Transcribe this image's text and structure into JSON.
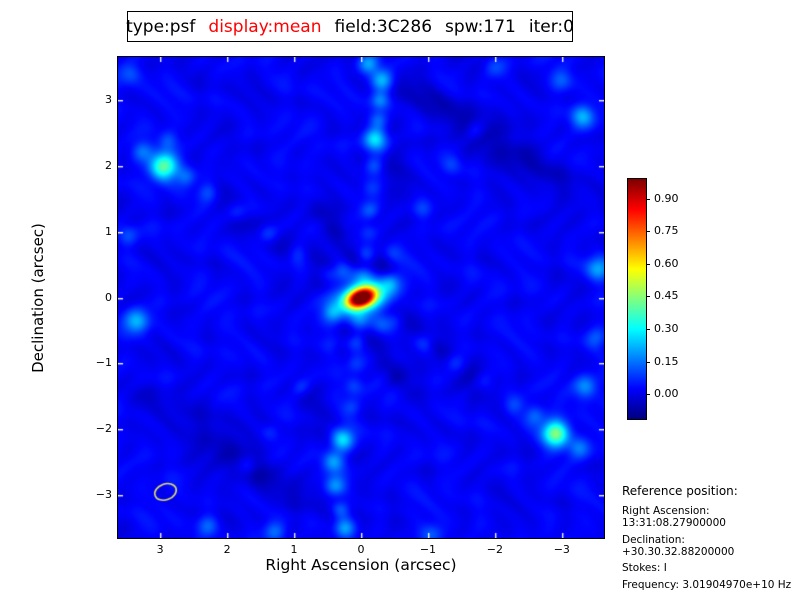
{
  "title": {
    "segments": [
      {
        "text": "type:psf",
        "color": "#000000"
      },
      {
        "text": "display:mean",
        "color": "#ff0000"
      },
      {
        "text": "field:3C286",
        "color": "#000000"
      },
      {
        "text": "spw:171",
        "color": "#000000"
      },
      {
        "text": "iter:0",
        "color": "#000000"
      }
    ]
  },
  "chart_data": {
    "type": "heatmap",
    "title": "type:psf display:mean field:3C286 spw:171 iter:0",
    "xlabel": "Right Ascension (arcsec)",
    "ylabel": "Declination (arcsec)",
    "xticks": [
      3,
      2,
      1,
      0,
      -1,
      -2,
      -3
    ],
    "yticks": [
      3,
      2,
      1,
      0,
      -1,
      -2,
      -3
    ],
    "xlim": [
      3.63,
      -3.63
    ],
    "ylim": [
      -3.65,
      3.65
    ],
    "colormap": "jet",
    "base_level": 0.02,
    "colorbar": {
      "ticks": [
        "0.90",
        "0.75",
        "0.60",
        "0.45",
        "0.30",
        "0.15",
        "0.00"
      ],
      "tick_values": [
        0.9,
        0.75,
        0.6,
        0.45,
        0.3,
        0.15,
        0.0
      ],
      "vmin": -0.11,
      "vmax": 0.995
    },
    "peak": {
      "x": 0,
      "y": 0,
      "value": 1.0
    },
    "features_format": "[ra_arcsec, dec_arcsec, amplitude, sigma_major_arcsec, sigma_minor_arcsec(optional), rotation_deg_screen(optional)]",
    "features": [
      [
        0,
        0,
        1.05,
        0.17,
        0.105,
        -20
      ],
      [
        0,
        0,
        0.17,
        0.4,
        0.28,
        -20
      ],
      [
        0.52,
        0.28,
        -0.1,
        0.16
      ],
      [
        -0.52,
        -0.28,
        -0.1,
        0.16
      ],
      [
        0.28,
        -0.5,
        -0.09,
        0.15
      ],
      [
        -0.28,
        0.5,
        -0.09,
        0.15
      ],
      [
        0.05,
        0.62,
        -0.07,
        0.14
      ],
      [
        -0.05,
        -0.62,
        -0.07,
        0.14
      ],
      [
        0.42,
        -0.22,
        0.13,
        0.1
      ],
      [
        -0.42,
        0.22,
        0.13,
        0.1
      ],
      [
        0.3,
        0.4,
        0.1,
        0.1
      ],
      [
        -0.3,
        -0.4,
        0.1,
        0.1
      ],
      [
        0.5,
        0.35,
        0.1,
        0.11
      ],
      [
        0.95,
        0.67,
        0.08,
        0.11
      ],
      [
        1.4,
        0.98,
        0.11,
        0.11
      ],
      [
        1.85,
        1.3,
        0.08,
        0.11
      ],
      [
        2.3,
        1.61,
        0.1,
        0.11
      ],
      [
        2.62,
        1.83,
        0.13,
        0.11
      ],
      [
        2.95,
        2.0,
        0.4,
        0.14
      ],
      [
        3.28,
        2.22,
        0.12,
        0.11
      ],
      [
        2.9,
        2.4,
        0.1,
        0.1
      ],
      [
        -0.5,
        -0.35,
        0.1,
        0.11
      ],
      [
        -0.95,
        -0.67,
        0.09,
        0.11
      ],
      [
        -1.4,
        -0.98,
        0.11,
        0.11
      ],
      [
        -1.85,
        -1.3,
        0.08,
        0.11
      ],
      [
        -2.3,
        -1.61,
        0.11,
        0.11
      ],
      [
        -2.58,
        -1.8,
        0.14,
        0.11
      ],
      [
        -2.9,
        -2.05,
        0.42,
        0.14
      ],
      [
        -3.25,
        -2.28,
        0.13,
        0.11
      ],
      [
        -0.03,
        0.33,
        0.08,
        0.095
      ],
      [
        -0.06,
        0.66,
        0.1,
        0.095
      ],
      [
        -0.09,
        1.0,
        0.07,
        0.095
      ],
      [
        -0.12,
        1.33,
        0.09,
        0.095
      ],
      [
        -0.15,
        1.66,
        0.07,
        0.095
      ],
      [
        -0.18,
        2.0,
        0.1,
        0.095
      ],
      [
        -0.21,
        2.4,
        0.28,
        0.12
      ],
      [
        -0.24,
        2.7,
        0.12,
        0.095
      ],
      [
        -0.27,
        3.0,
        0.14,
        0.095
      ],
      [
        -0.3,
        3.3,
        0.22,
        0.12
      ],
      [
        -0.1,
        3.55,
        0.18,
        0.11
      ],
      [
        0.03,
        -0.33,
        0.08,
        0.095
      ],
      [
        0.06,
        -0.66,
        0.1,
        0.095
      ],
      [
        0.09,
        -1.0,
        0.07,
        0.095
      ],
      [
        0.12,
        -1.33,
        0.09,
        0.095
      ],
      [
        0.15,
        -1.66,
        0.08,
        0.095
      ],
      [
        0.28,
        -2.15,
        0.26,
        0.12
      ],
      [
        0.42,
        -2.48,
        0.2,
        0.11
      ],
      [
        0.4,
        -2.86,
        0.18,
        0.11
      ],
      [
        0.3,
        -3.2,
        0.12,
        0.095
      ],
      [
        0.25,
        -3.5,
        0.2,
        0.11
      ],
      [
        0.45,
        -0.68,
        0.06,
        0.1
      ],
      [
        0.9,
        -1.35,
        0.07,
        0.1
      ],
      [
        1.35,
        -2.03,
        0.06,
        0.1
      ],
      [
        1.7,
        -2.55,
        0.07,
        0.1
      ],
      [
        -0.45,
        0.68,
        0.06,
        0.1
      ],
      [
        -0.9,
        1.35,
        0.07,
        0.1
      ],
      [
        -1.35,
        2.03,
        0.06,
        0.1
      ],
      [
        -1.7,
        2.55,
        0.07,
        0.1
      ],
      [
        3.35,
        -0.35,
        0.22,
        0.13
      ],
      [
        3.5,
        0.95,
        0.1,
        0.11
      ],
      [
        3.45,
        3.4,
        0.1,
        0.11
      ],
      [
        -3.3,
        2.75,
        0.18,
        0.12
      ],
      [
        -3.55,
        0.45,
        0.2,
        0.13
      ],
      [
        -3.5,
        -0.6,
        0.12,
        0.11
      ],
      [
        -3.35,
        -1.35,
        0.18,
        0.12
      ],
      [
        -3.0,
        3.3,
        0.1,
        0.11
      ],
      [
        1.3,
        -3.55,
        0.12,
        0.11
      ],
      [
        -1.05,
        -3.6,
        0.1,
        0.11
      ],
      [
        2.3,
        -3.45,
        0.1,
        0.11
      ],
      [
        -2.0,
        3.5,
        0.08,
        0.11
      ],
      [
        1.5,
        1.05,
        -0.05,
        0.7,
        0.16,
        34
      ],
      [
        -1.5,
        -1.05,
        -0.05,
        0.7,
        0.16,
        34
      ],
      [
        -1.2,
        2.9,
        -0.06,
        0.8,
        0.16,
        30
      ],
      [
        -2.4,
        2.1,
        -0.05,
        0.9,
        0.2,
        28
      ],
      [
        1.3,
        -2.8,
        -0.05,
        0.8,
        0.18,
        30
      ],
      [
        2.4,
        -2.0,
        -0.04,
        0.9,
        0.2,
        28
      ],
      [
        0.5,
        1.15,
        -0.07,
        0.3,
        0.12,
        55
      ],
      [
        -0.5,
        -1.15,
        -0.07,
        0.3,
        0.12,
        55
      ],
      [
        -0.6,
        1.9,
        -0.05,
        0.35,
        0.14,
        60
      ],
      [
        0.6,
        -1.9,
        -0.05,
        0.35,
        0.14,
        60
      ]
    ],
    "beam_ellipse": {
      "x": 2.92,
      "y": -2.95,
      "rx": 0.165,
      "ry": 0.121,
      "angle_deg": -20,
      "color": "#dede6a"
    }
  },
  "reference": {
    "heading": "Reference position:",
    "lines": [
      "Right Ascension: 13:31:08.27900000",
      "Declination: +30.30.32.88200000",
      "Stokes: I",
      "Frequency: 3.01904970e+10 Hz"
    ]
  }
}
